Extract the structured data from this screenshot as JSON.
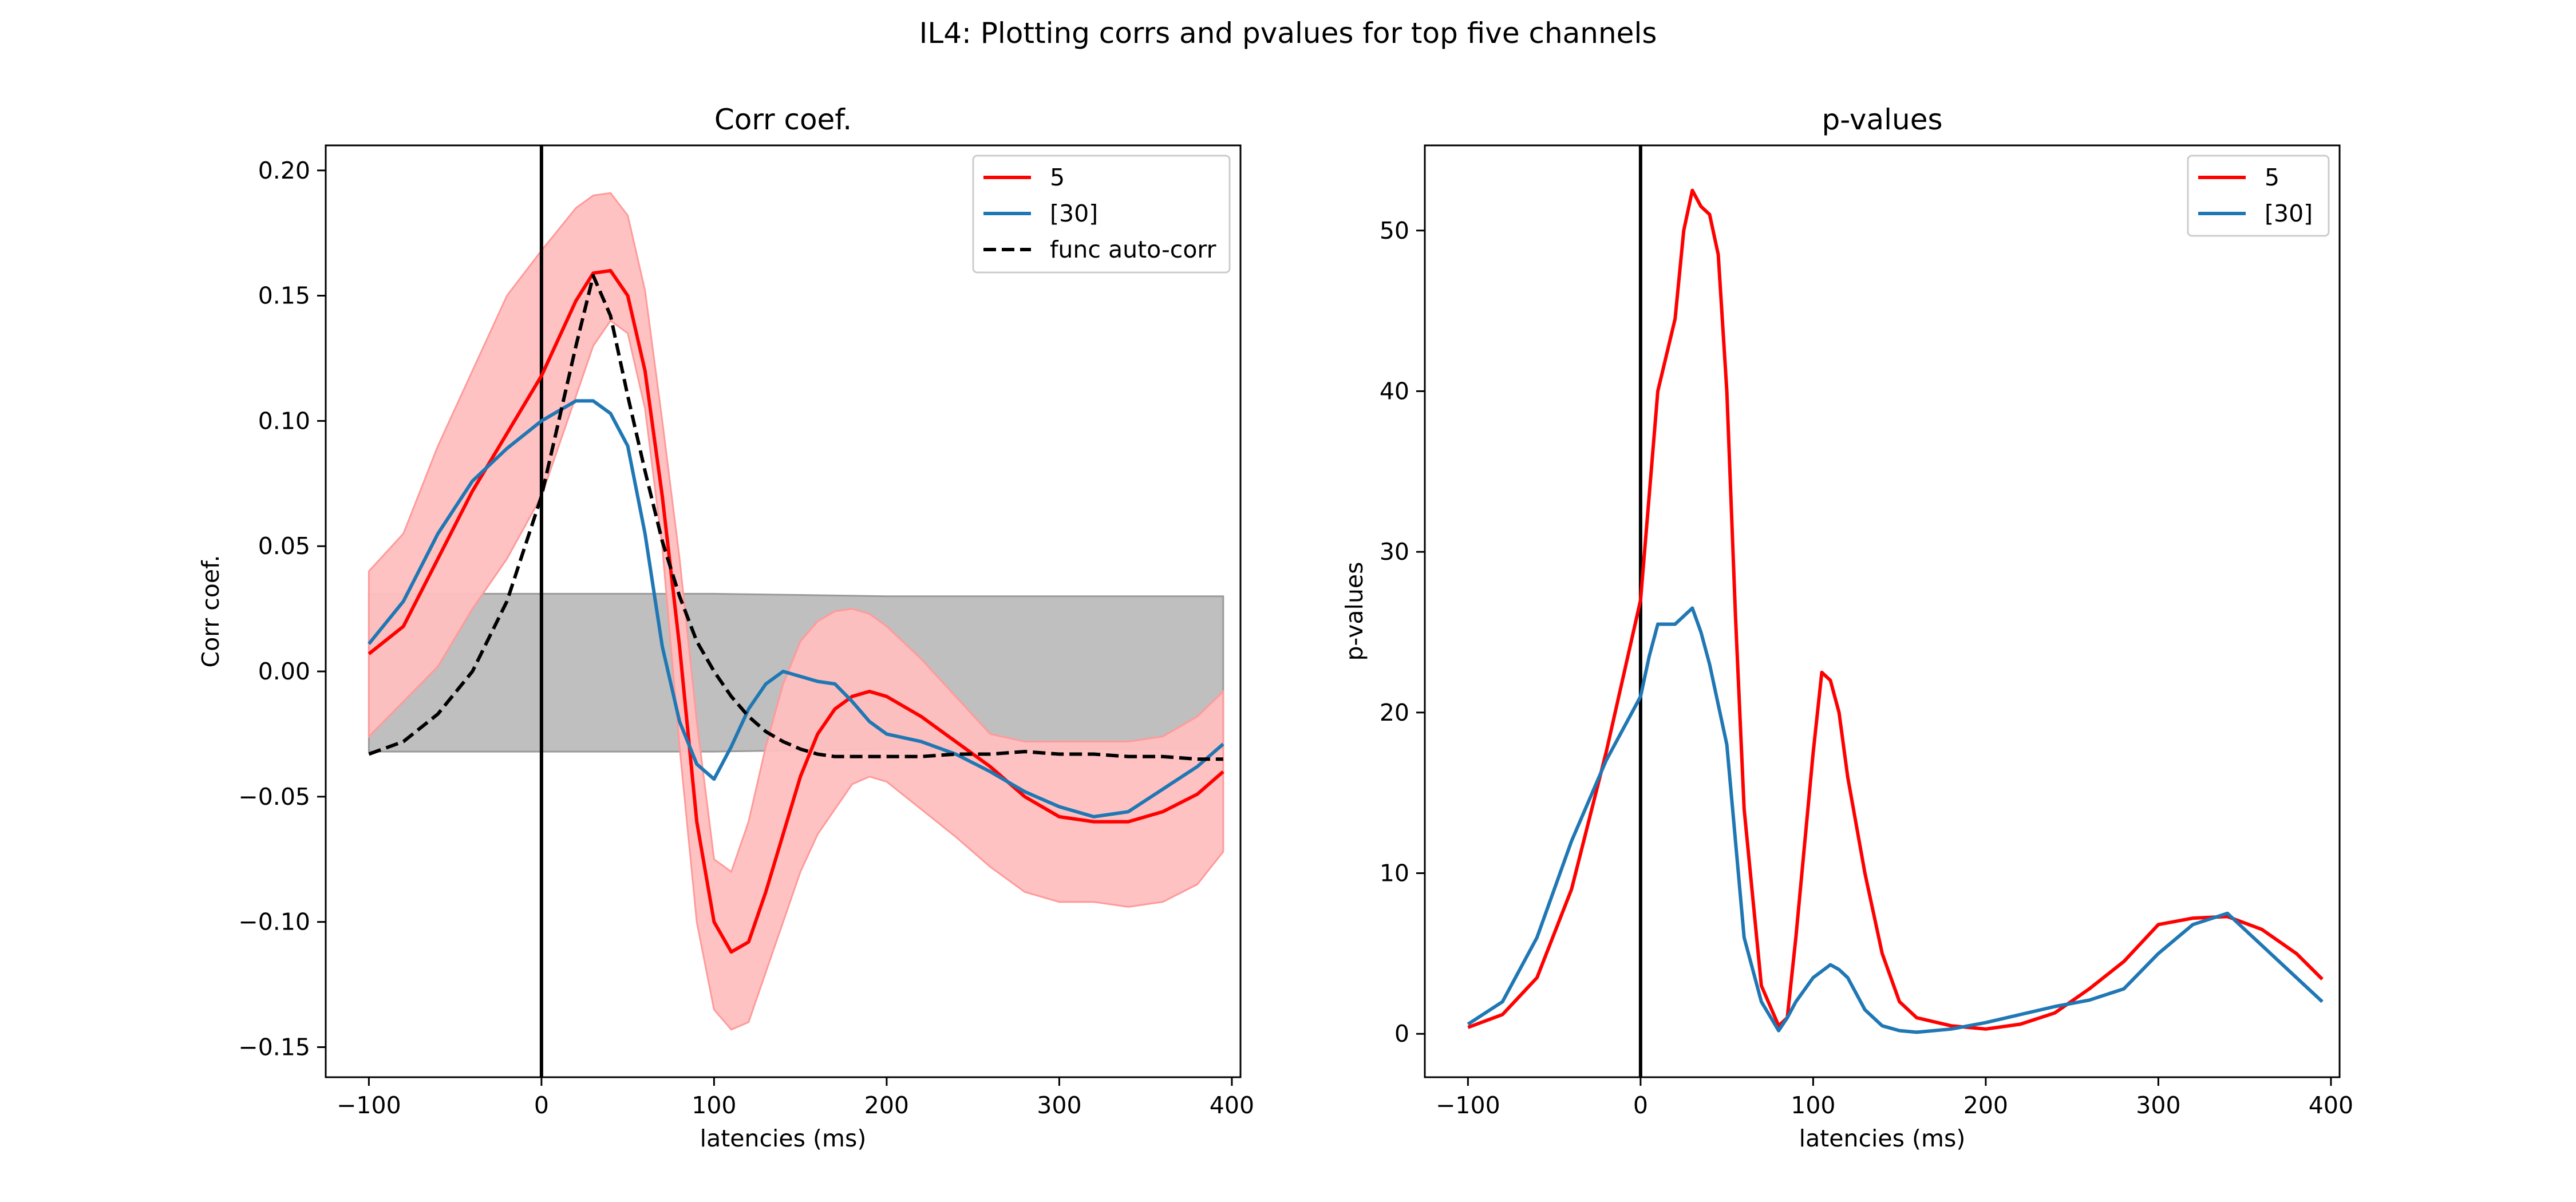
{
  "figure": {
    "suptitle": "IL4: Plotting corrs and pvalues for top five channels"
  },
  "colors": {
    "red": "#ff0000",
    "blue": "#1f77b4",
    "black": "#000000",
    "red_band": "#ffbfbf",
    "red_band_edge": "#ff9a9a",
    "gray_band": "#bfbfbf",
    "gray_band_edge": "#9a9a9a"
  },
  "chart_data": [
    {
      "type": "line",
      "title": "Corr coef.",
      "xlabel": "latencies (ms)",
      "ylabel": "Corr coef.",
      "xlim": [
        -125,
        405
      ],
      "ylim": [
        -0.162,
        0.21
      ],
      "xticks": [
        -100,
        0,
        100,
        200,
        300,
        400
      ],
      "xtick_labels": [
        "−100",
        "0",
        "100",
        "200",
        "300",
        "400"
      ],
      "yticks": [
        -0.15,
        -0.1,
        -0.05,
        0.0,
        0.05,
        0.1,
        0.15,
        0.2
      ],
      "ytick_labels": [
        "−0.15",
        "−0.10",
        "−0.05",
        "0.00",
        "0.05",
        "0.10",
        "0.15",
        "0.20"
      ],
      "grid": false,
      "legend_position": "top-right",
      "vline_x": 0,
      "x": [
        -100,
        -80,
        -60,
        -40,
        -20,
        0,
        20,
        30,
        40,
        50,
        60,
        70,
        80,
        90,
        100,
        110,
        120,
        130,
        140,
        150,
        160,
        170,
        180,
        190,
        200,
        220,
        240,
        260,
        280,
        300,
        320,
        340,
        360,
        380,
        395
      ],
      "series": [
        {
          "name": "5",
          "color": "red",
          "style": "solid",
          "values": [
            0.007,
            0.018,
            0.045,
            0.072,
            0.095,
            0.118,
            0.148,
            0.159,
            0.16,
            0.15,
            0.12,
            0.07,
            0.01,
            -0.06,
            -0.1,
            -0.112,
            -0.108,
            -0.088,
            -0.065,
            -0.042,
            -0.025,
            -0.015,
            -0.01,
            -0.008,
            -0.01,
            -0.018,
            -0.028,
            -0.038,
            -0.05,
            -0.058,
            -0.06,
            -0.06,
            -0.056,
            -0.049,
            -0.04
          ],
          "band_upper": [
            0.04,
            0.055,
            0.09,
            0.12,
            0.15,
            0.168,
            0.185,
            0.19,
            0.191,
            0.182,
            0.152,
            0.1,
            0.045,
            -0.02,
            -0.075,
            -0.08,
            -0.06,
            -0.03,
            -0.005,
            0.012,
            0.02,
            0.024,
            0.025,
            0.023,
            0.018,
            0.005,
            -0.01,
            -0.025,
            -0.028,
            -0.028,
            -0.028,
            -0.028,
            -0.026,
            -0.018,
            -0.008
          ],
          "band_lower": [
            -0.026,
            -0.012,
            0.002,
            0.025,
            0.045,
            0.07,
            0.11,
            0.13,
            0.14,
            0.135,
            0.105,
            0.05,
            -0.03,
            -0.1,
            -0.135,
            -0.143,
            -0.14,
            -0.12,
            -0.1,
            -0.08,
            -0.065,
            -0.055,
            -0.045,
            -0.042,
            -0.044,
            -0.055,
            -0.066,
            -0.078,
            -0.088,
            -0.092,
            -0.092,
            -0.094,
            -0.092,
            -0.085,
            -0.072
          ]
        },
        {
          "name": "[30]",
          "color": "blue",
          "style": "solid",
          "values": [
            0.011,
            0.028,
            0.055,
            0.076,
            0.089,
            0.1,
            0.108,
            0.108,
            0.103,
            0.09,
            0.055,
            0.01,
            -0.02,
            -0.037,
            -0.043,
            -0.03,
            -0.015,
            -0.005,
            0.0,
            -0.002,
            -0.004,
            -0.005,
            -0.012,
            -0.02,
            -0.025,
            -0.028,
            -0.033,
            -0.04,
            -0.048,
            -0.054,
            -0.058,
            -0.056,
            -0.047,
            -0.038,
            -0.029
          ]
        },
        {
          "name": "func auto-corr",
          "color": "black",
          "style": "dashed",
          "values": [
            -0.033,
            -0.028,
            -0.017,
            0.0,
            0.028,
            0.07,
            0.13,
            0.158,
            0.142,
            0.11,
            0.08,
            0.052,
            0.03,
            0.012,
            0.0,
            -0.01,
            -0.018,
            -0.024,
            -0.028,
            -0.031,
            -0.033,
            -0.034,
            -0.034,
            -0.034,
            -0.034,
            -0.034,
            -0.033,
            -0.033,
            -0.032,
            -0.033,
            -0.033,
            -0.034,
            -0.034,
            -0.035,
            -0.035
          ]
        }
      ],
      "null_band": {
        "color": "gray",
        "x": [
          -100,
          0,
          100,
          200,
          300,
          395
        ],
        "upper": [
          0.031,
          0.031,
          0.031,
          0.03,
          0.03,
          0.03
        ],
        "lower": [
          -0.032,
          -0.032,
          -0.032,
          -0.031,
          -0.031,
          -0.031
        ]
      }
    },
    {
      "type": "line",
      "title": "p-values",
      "xlabel": "latencies (ms)",
      "ylabel": "p-values",
      "xlim": [
        -125,
        405
      ],
      "ylim": [
        -2.7,
        55.3
      ],
      "xticks": [
        -100,
        0,
        100,
        200,
        300,
        400
      ],
      "xtick_labels": [
        "−100",
        "0",
        "100",
        "200",
        "300",
        "400"
      ],
      "yticks": [
        0,
        10,
        20,
        30,
        40,
        50
      ],
      "ytick_labels": [
        "0",
        "10",
        "20",
        "30",
        "40",
        "50"
      ],
      "grid": false,
      "legend_position": "top-right",
      "vline_x": 0,
      "series": [
        {
          "name": "5",
          "color": "red",
          "style": "solid",
          "x": [
            -100,
            -80,
            -60,
            -40,
            -20,
            0,
            10,
            20,
            25,
            30,
            35,
            40,
            45,
            50,
            55,
            60,
            70,
            80,
            85,
            90,
            100,
            105,
            110,
            115,
            120,
            130,
            140,
            150,
            160,
            180,
            200,
            220,
            240,
            260,
            280,
            300,
            320,
            340,
            360,
            380,
            395
          ],
          "values": [
            0.4,
            1.2,
            3.5,
            9.0,
            17.5,
            27.0,
            40.0,
            44.5,
            50.0,
            52.5,
            51.5,
            51.0,
            48.5,
            40.0,
            26.0,
            14.0,
            3.0,
            0.5,
            1.0,
            6.0,
            17.5,
            22.5,
            22.0,
            20.0,
            16.0,
            10.0,
            5.0,
            2.0,
            1.0,
            0.5,
            0.3,
            0.6,
            1.3,
            2.8,
            4.5,
            6.8,
            7.2,
            7.3,
            6.5,
            5.0,
            3.4
          ]
        },
        {
          "name": "[30]",
          "color": "blue",
          "style": "solid",
          "x": [
            -100,
            -80,
            -60,
            -40,
            -20,
            0,
            5,
            10,
            20,
            25,
            30,
            35,
            40,
            50,
            55,
            60,
            70,
            80,
            85,
            90,
            100,
            110,
            115,
            120,
            130,
            140,
            150,
            160,
            180,
            200,
            220,
            240,
            260,
            280,
            300,
            320,
            340,
            360,
            380,
            395
          ],
          "values": [
            0.6,
            2.0,
            6.0,
            12.0,
            17.0,
            21.0,
            23.5,
            25.5,
            25.5,
            26.0,
            26.5,
            25.0,
            23.0,
            18.0,
            12.0,
            6.0,
            2.0,
            0.2,
            1.0,
            2.0,
            3.5,
            4.3,
            4.0,
            3.5,
            1.5,
            0.5,
            0.2,
            0.1,
            0.3,
            0.7,
            1.2,
            1.7,
            2.1,
            2.8,
            5.0,
            6.8,
            7.5,
            5.5,
            3.5,
            2.0
          ]
        }
      ]
    }
  ]
}
